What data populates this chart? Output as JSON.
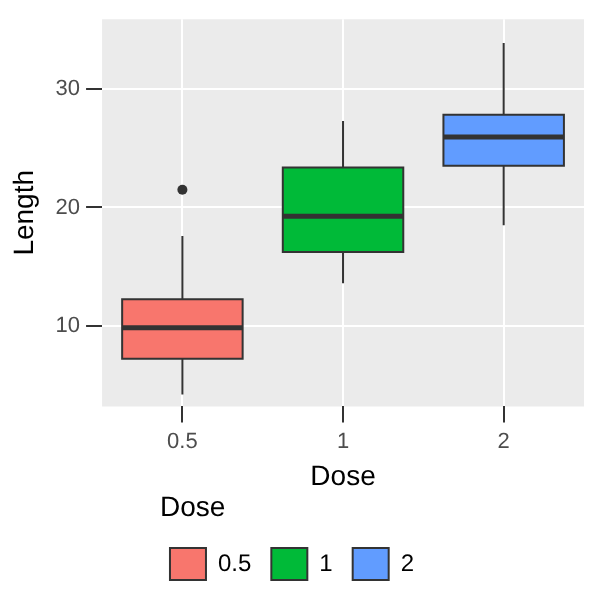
{
  "chart_data": {
    "type": "box",
    "xlabel": "Dose",
    "ylabel": "Length",
    "legend_title": "Dose",
    "legend": "bottom",
    "grid": true,
    "categories": [
      "0.5",
      "1",
      "2"
    ],
    "series": [
      {
        "name": "0.5",
        "color": "#f8766d",
        "boxes": [
          {
            "low": 4.2,
            "q1": 7.225,
            "median": 9.85,
            "q3": 12.25,
            "high": 17.6,
            "outliers": [
              21.5
            ]
          },
          null,
          null
        ]
      },
      {
        "name": "1",
        "color": "#00ba38",
        "boxes": [
          null,
          {
            "low": 13.6,
            "q1": 16.25,
            "median": 19.25,
            "q3": 23.375,
            "high": 27.3
          },
          null
        ]
      },
      {
        "name": "2",
        "color": "#619cff",
        "boxes": [
          null,
          null,
          {
            "low": 18.5,
            "q1": 23.525,
            "median": 25.95,
            "q3": 27.825,
            "high": 33.9
          }
        ]
      }
    ],
    "ylim": [
      3.2,
      35.9
    ],
    "yticks": [
      10,
      20,
      30
    ]
  }
}
